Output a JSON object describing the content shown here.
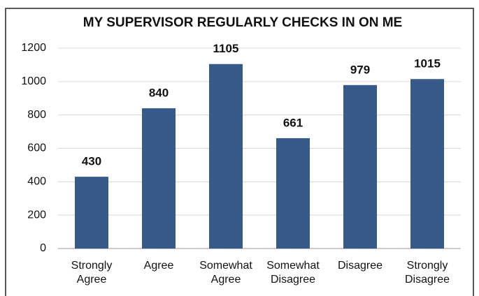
{
  "chart_data": {
    "type": "bar",
    "title": "MY SUPERVISOR REGULARLY CHECKS IN ON ME",
    "categories": [
      "Strongly Agree",
      "Agree",
      "Somewhat Agree",
      "Somewhat Disagree",
      "Disagree",
      "Strongly Disagree"
    ],
    "values": [
      430,
      840,
      1105,
      661,
      979,
      1015
    ],
    "color": "#375a8b",
    "ylim": [
      0,
      1200
    ],
    "yticks": [
      0,
      200,
      400,
      600,
      800,
      1000,
      1200
    ],
    "grid": true
  }
}
